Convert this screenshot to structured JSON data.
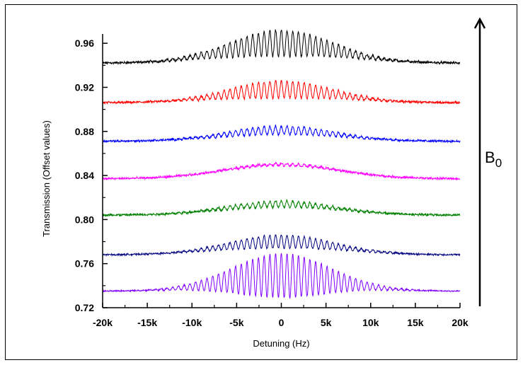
{
  "chart_data": {
    "type": "line",
    "title": "",
    "xlabel": "Detuning (Hz)",
    "ylabel": "Transmission (Offset values)",
    "xlim": [
      -20000,
      20000
    ],
    "ylim": [
      0.72,
      0.98
    ],
    "x_ticks": [
      -20000,
      -15000,
      -10000,
      -5000,
      0,
      5000,
      10000,
      15000,
      20000
    ],
    "x_tick_labels": [
      "-20k",
      "-15k",
      "-10k",
      "-5k",
      "0",
      "5k",
      "10k",
      "15k",
      "20k"
    ],
    "y_ticks": [
      0.72,
      0.76,
      0.8,
      0.84,
      0.88,
      0.92,
      0.96
    ],
    "y_tick_labels": [
      "0.72",
      "0.76",
      "0.80",
      "0.84",
      "0.88",
      "0.92",
      "0.96"
    ],
    "grid": false,
    "legend": "none",
    "series": [
      {
        "color": "#000000",
        "baseline": 0.942,
        "peak_rise": 0.018,
        "fringe_amplitude": 0.012,
        "fringe_period_hz": 640,
        "noise": 0.0018
      },
      {
        "color": "#ff0000",
        "baseline": 0.906,
        "peak_rise": 0.012,
        "fringe_amplitude": 0.008,
        "fringe_period_hz": 640,
        "noise": 0.0016
      },
      {
        "color": "#0000ff",
        "baseline": 0.871,
        "peak_rise": 0.01,
        "fringe_amplitude": 0.004,
        "fringe_period_hz": 640,
        "noise": 0.0015
      },
      {
        "color": "#ff00ff",
        "baseline": 0.837,
        "peak_rise": 0.013,
        "fringe_amplitude": 0.001,
        "fringe_period_hz": 640,
        "noise": 0.0016
      },
      {
        "color": "#008000",
        "baseline": 0.804,
        "peak_rise": 0.01,
        "fringe_amplitude": 0.003,
        "fringe_period_hz": 640,
        "noise": 0.0017
      },
      {
        "color": "#000080",
        "baseline": 0.768,
        "peak_rise": 0.012,
        "fringe_amplitude": 0.006,
        "fringe_period_hz": 640,
        "noise": 0.0012
      },
      {
        "color": "#8000ff",
        "baseline": 0.735,
        "peak_rise": 0.014,
        "fringe_amplitude": 0.02,
        "fringe_period_hz": 640,
        "noise": 0.001
      }
    ],
    "annotation": {
      "base": "B",
      "subscript": "0",
      "arrow_direction": "up"
    }
  }
}
